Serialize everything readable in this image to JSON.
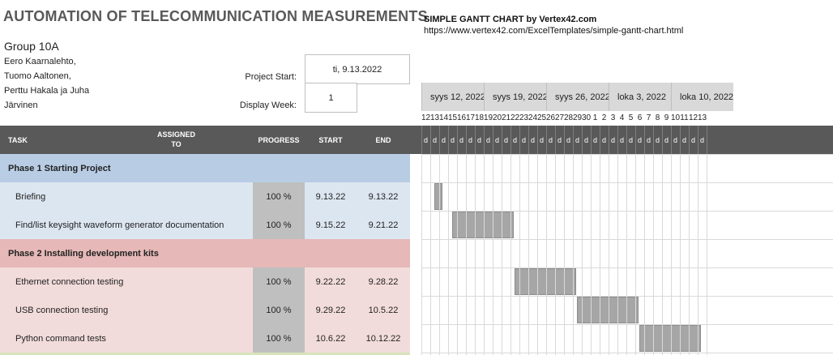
{
  "title": "AUTOMATION OF TELECOMMUNICATION MEASUREMENTS",
  "group": "Group 10A",
  "members": [
    "Eero Kaarnalehto,",
    "Tuomo Aaltonen,",
    "Perttu Hakala ja Juha",
    "Järvinen"
  ],
  "project_start_label": "Project Start:",
  "project_start_value": "ti, 9.13.2022",
  "display_week_label": "Display Week:",
  "display_week_value": "1",
  "gantt_title": "SIMPLE GANTT CHART by Vertex42.com",
  "gantt_url": "https://www.vertex42.com/ExcelTemplates/simple-gantt-chart.html",
  "columns": {
    "task": "TASK",
    "assigned": "ASSIGNED TO",
    "progress": "PROGRESS",
    "start": "START",
    "end": "END"
  },
  "weeks": [
    "syys 12, 2022",
    "syys 19, 2022",
    "syys 26, 2022",
    "loka 3, 2022",
    "loka 10, 2022"
  ],
  "days": [
    "12",
    "13",
    "14",
    "15",
    "16",
    "17",
    "18",
    "19",
    "20",
    "21",
    "22",
    "23",
    "24",
    "25",
    "26",
    "27",
    "28",
    "29",
    "30",
    "1",
    "2",
    "3",
    "4",
    "5",
    "6",
    "7",
    "8",
    "9",
    "10",
    "11",
    "12",
    "13"
  ],
  "day_letter": "d",
  "rows": [
    {
      "type": "phase",
      "label": "Phase 1 Starting Project",
      "color": "#b8cce4"
    },
    {
      "type": "task",
      "label": "Briefing",
      "progress": "100 %",
      "start": "9.13.22",
      "end": "9.13.22",
      "color": "#dce6f1",
      "bar_start": 1,
      "bar_days": 1
    },
    {
      "type": "task",
      "label": "Find/list keysight waveform generator documentation",
      "progress": "100 %",
      "start": "9.15.22",
      "end": "9.21.22",
      "color": "#dce6f1",
      "bar_start": 3,
      "bar_days": 7
    },
    {
      "type": "phase",
      "label": "Phase 2 Installing development kits",
      "color": "#e6b8b7"
    },
    {
      "type": "task",
      "label": "Ethernet connection testing",
      "progress": "100 %",
      "start": "9.22.22",
      "end": "9.28.22",
      "color": "#f2dcdb",
      "bar_start": 10,
      "bar_days": 7
    },
    {
      "type": "task",
      "label": "USB connection testing",
      "progress": "100 %",
      "start": "9.29.22",
      "end": "10.5.22",
      "color": "#f2dcdb",
      "bar_start": 17,
      "bar_days": 7
    },
    {
      "type": "task",
      "label": "Python command tests",
      "progress": "100 %",
      "start": "10.6.22",
      "end": "10.12.22",
      "color": "#f2dcdb",
      "bar_start": 24,
      "bar_days": 7
    }
  ]
}
